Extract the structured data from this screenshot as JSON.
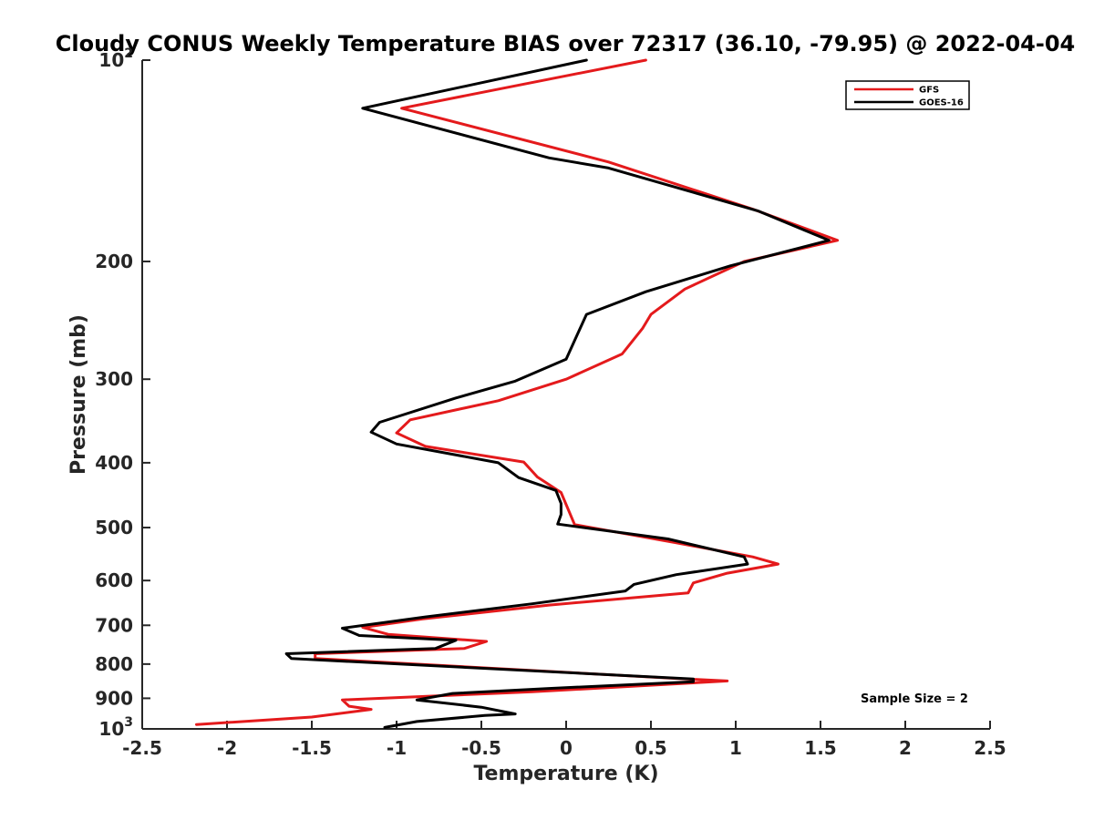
{
  "chart_data": {
    "type": "line",
    "title": "Cloudy CONUS Weekly Temperature BIAS over 72317 (36.10, -79.95) @ 2022-04-04",
    "xlabel": "Temperature (K)",
    "ylabel": "Pressure (mb)",
    "xlim": [
      -2.5,
      2.5
    ],
    "ylim": [
      100,
      1000
    ],
    "y_scale": "log",
    "y_reversed": true,
    "grid": false,
    "legend_position": "top-right",
    "x_ticks": [
      -2.5,
      -2,
      -1.5,
      -1,
      -0.5,
      0,
      0.5,
      1,
      1.5,
      2,
      2.5
    ],
    "x_tick_labels": [
      "-2.5",
      "-2",
      "-1.5",
      "-1",
      "-0.5",
      "0",
      "0.5",
      "1",
      "1.5",
      "2",
      "2.5"
    ],
    "y_ticks": [
      {
        "value": 100,
        "base": "10",
        "exp": "2"
      },
      {
        "value": 200,
        "label": "200"
      },
      {
        "value": 300,
        "label": "300"
      },
      {
        "value": 400,
        "label": "400"
      },
      {
        "value": 500,
        "label": "500"
      },
      {
        "value": 600,
        "label": "600"
      },
      {
        "value": 700,
        "label": "700"
      },
      {
        "value": 800,
        "label": "800"
      },
      {
        "value": 900,
        "label": "900"
      },
      {
        "value": 1000,
        "base": "10",
        "exp": "3"
      }
    ],
    "annotation": "Sample Size = 2",
    "series": [
      {
        "name": "GFS",
        "color": "#e41a1c",
        "points": [
          [
            0.47,
            100
          ],
          [
            -0.97,
            118
          ],
          [
            0.25,
            142
          ],
          [
            1.1,
            167
          ],
          [
            1.6,
            186
          ],
          [
            1.05,
            200
          ],
          [
            0.7,
            220
          ],
          [
            0.5,
            240
          ],
          [
            0.45,
            252
          ],
          [
            0.33,
            275
          ],
          [
            0.0,
            300
          ],
          [
            -0.4,
            323
          ],
          [
            -0.92,
            345
          ],
          [
            -1.0,
            361
          ],
          [
            -0.83,
            378
          ],
          [
            -0.25,
            399
          ],
          [
            -0.17,
            420
          ],
          [
            -0.03,
            443
          ],
          [
            0.05,
            495
          ],
          [
            0.65,
            527
          ],
          [
            1.1,
            553
          ],
          [
            1.25,
            567
          ],
          [
            0.95,
            585
          ],
          [
            0.75,
            605
          ],
          [
            0.72,
            626
          ],
          [
            -0.1,
            653
          ],
          [
            -0.85,
            685
          ],
          [
            -1.2,
            705
          ],
          [
            -1.05,
            722
          ],
          [
            -0.47,
            740
          ],
          [
            -0.6,
            758
          ],
          [
            -1.48,
            772
          ],
          [
            -1.48,
            785
          ],
          [
            0.75,
            843
          ],
          [
            0.95,
            848
          ],
          [
            -0.2,
            880
          ],
          [
            -1.32,
            905
          ],
          [
            -1.28,
            925
          ],
          [
            -1.15,
            935
          ],
          [
            -1.5,
            960
          ],
          [
            -2.18,
            985
          ]
        ]
      },
      {
        "name": "GOES-16",
        "color": "#000000",
        "points": [
          [
            0.12,
            100
          ],
          [
            -1.2,
            118
          ],
          [
            -0.1,
            140
          ],
          [
            0.25,
            145
          ],
          [
            1.13,
            168
          ],
          [
            1.55,
            186
          ],
          [
            0.97,
            203
          ],
          [
            0.47,
            222
          ],
          [
            0.12,
            240
          ],
          [
            0.0,
            280
          ],
          [
            -0.3,
            302
          ],
          [
            -0.65,
            320
          ],
          [
            -1.1,
            348
          ],
          [
            -1.15,
            360
          ],
          [
            -1.0,
            375
          ],
          [
            -0.4,
            400
          ],
          [
            -0.28,
            421
          ],
          [
            -0.06,
            440
          ],
          [
            -0.03,
            460
          ],
          [
            -0.03,
            478
          ],
          [
            -0.05,
            494
          ],
          [
            0.6,
            520
          ],
          [
            1.05,
            553
          ],
          [
            1.07,
            567
          ],
          [
            0.65,
            588
          ],
          [
            0.4,
            608
          ],
          [
            0.35,
            622
          ],
          [
            -0.2,
            650
          ],
          [
            -0.83,
            680
          ],
          [
            -1.32,
            707
          ],
          [
            -1.22,
            725
          ],
          [
            -0.65,
            737
          ],
          [
            -0.77,
            758
          ],
          [
            -1.65,
            772
          ],
          [
            -1.62,
            785
          ],
          [
            0.75,
            842
          ],
          [
            0.75,
            850
          ],
          [
            -0.1,
            870
          ],
          [
            -0.67,
            885
          ],
          [
            -0.88,
            905
          ],
          [
            -0.5,
            928
          ],
          [
            -0.3,
            950
          ],
          [
            -0.48,
            955
          ],
          [
            -0.88,
            975
          ],
          [
            -1.07,
            995
          ]
        ]
      }
    ]
  }
}
